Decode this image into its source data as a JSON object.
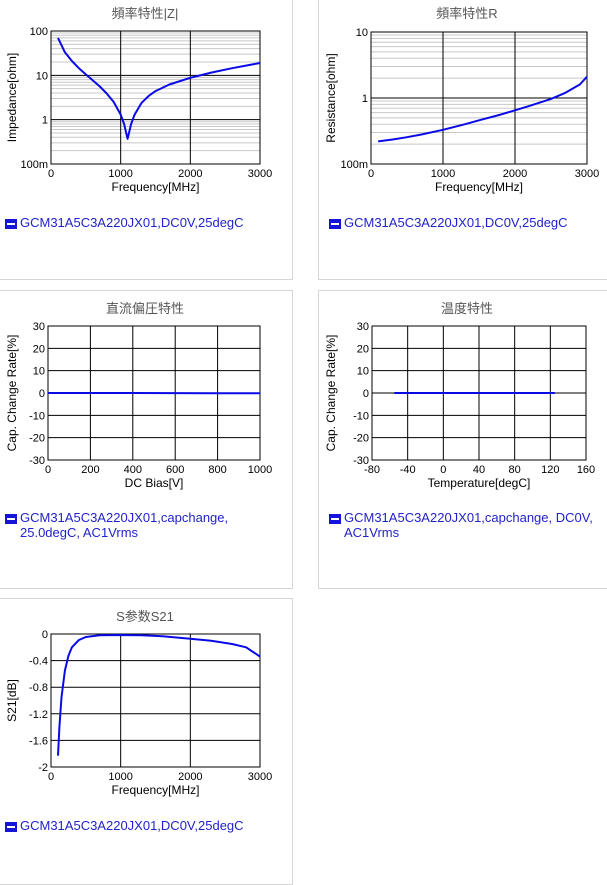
{
  "chart_data": [
    {
      "type": "line",
      "title": "頻率特性|Z|",
      "xlabel": "Frequency[MHz]",
      "ylabel": "Impedance[ohm]",
      "xlim": [
        0,
        3000
      ],
      "ylim": [
        0.1,
        100
      ],
      "ylog": true,
      "x_tick_labels": [
        "0",
        "1000",
        "2000",
        "3000"
      ],
      "y_tick_labels": [
        "100m",
        "1",
        "10",
        "100"
      ],
      "grid": true,
      "legend": "GCM31A5C3A220JX01,DC0V,25degC",
      "series": [
        {
          "name": "GCM31A5C3A220JX01,DC0V,25degC",
          "x": [
            100,
            200,
            300,
            400,
            500,
            600,
            700,
            800,
            900,
            1000,
            1050,
            1080,
            1100,
            1120,
            1150,
            1200,
            1300,
            1400,
            1500,
            1700,
            2000,
            2300,
            2600,
            3000
          ],
          "y": [
            70,
            33,
            21,
            14.5,
            10.5,
            7.7,
            5.6,
            3.9,
            2.5,
            1.3,
            0.8,
            0.5,
            0.37,
            0.5,
            0.8,
            1.3,
            2.4,
            3.4,
            4.4,
            6.2,
            8.8,
            11.5,
            14.5,
            19
          ]
        }
      ]
    },
    {
      "type": "line",
      "title": "頻率特性R",
      "xlabel": "Frequency[MHz]",
      "ylabel": "Resistance[ohm]",
      "xlim": [
        0,
        3000
      ],
      "ylim": [
        0.1,
        10
      ],
      "ylog": true,
      "x_tick_labels": [
        "0",
        "1000",
        "2000",
        "3000"
      ],
      "y_tick_labels": [
        "100m",
        "1",
        "10"
      ],
      "grid": true,
      "legend": "GCM31A5C3A220JX01,DC0V,25degC",
      "series": [
        {
          "name": "GCM31A5C3A220JX01,DC0V,25degC",
          "x": [
            100,
            300,
            500,
            700,
            1000,
            1300,
            1500,
            1800,
            2000,
            2200,
            2500,
            2700,
            2900,
            3000
          ],
          "y": [
            0.22,
            0.235,
            0.255,
            0.28,
            0.33,
            0.4,
            0.46,
            0.56,
            0.65,
            0.76,
            0.97,
            1.2,
            1.6,
            2.1
          ]
        }
      ]
    },
    {
      "type": "line",
      "title": "直流偏圧特性",
      "xlabel": "DC Bias[V]",
      "ylabel": "Cap. Change Rate[%]",
      "xlim": [
        0,
        1000
      ],
      "ylim": [
        -30,
        30
      ],
      "x_tick_labels": [
        "0",
        "200",
        "400",
        "600",
        "800",
        "1000"
      ],
      "y_tick_labels": [
        "-30",
        "-20",
        "-10",
        "0",
        "10",
        "20",
        "30"
      ],
      "grid": true,
      "legend": "GCM31A5C3A220JX01,capchange, 25.0degC, AC1Vrms",
      "series": [
        {
          "name": "GCM31A5C3A220JX01,capchange, 25.0degC, AC1Vrms",
          "x": [
            0,
            200,
            400,
            600,
            800,
            1000
          ],
          "y": [
            0,
            0,
            0,
            -0.05,
            -0.1,
            -0.15
          ]
        }
      ]
    },
    {
      "type": "line",
      "title": "温度特性",
      "xlabel": "Temperature[degC]",
      "ylabel": "Cap. Change Rate[%]",
      "xlim": [
        -80,
        160
      ],
      "ylim": [
        -30,
        30
      ],
      "x_tick_labels": [
        "-80",
        "-40",
        "0",
        "40",
        "80",
        "120",
        "160"
      ],
      "y_tick_labels": [
        "-30",
        "-20",
        "-10",
        "0",
        "10",
        "20",
        "30"
      ],
      "grid": true,
      "legend": "GCM31A5C3A220JX01,capchange, DC0V, AC1Vrms",
      "series": [
        {
          "name": "GCM31A5C3A220JX01,capchange, DC0V, AC1Vrms",
          "x": [
            -55,
            0,
            25,
            60,
            125
          ],
          "y": [
            0,
            0,
            0,
            0,
            0
          ]
        }
      ]
    },
    {
      "type": "line",
      "title": "S参数S21",
      "xlabel": "Frequency[MHz]",
      "ylabel": "S21[dB]",
      "xlim": [
        0,
        3000
      ],
      "ylim": [
        -2,
        0
      ],
      "x_tick_labels": [
        "0",
        "1000",
        "2000",
        "3000"
      ],
      "y_tick_labels": [
        "-2",
        "-1.6",
        "-1.2",
        "-0.8",
        "-0.4",
        "0"
      ],
      "grid": true,
      "legend": "GCM31A5C3A220JX01,DC0V,25degC",
      "series": [
        {
          "name": "GCM31A5C3A220JX01,DC0V,25degC",
          "x": [
            100,
            120,
            150,
            200,
            250,
            300,
            400,
            500,
            700,
            1000,
            1300,
            1600,
            2000,
            2300,
            2600,
            2800,
            3000
          ],
          "y": [
            -1.83,
            -1.4,
            -0.95,
            -0.55,
            -0.33,
            -0.2,
            -0.09,
            -0.045,
            -0.02,
            -0.015,
            -0.02,
            -0.035,
            -0.07,
            -0.1,
            -0.15,
            -0.2,
            -0.34
          ]
        }
      ]
    }
  ],
  "colors": {
    "line": "#0a0ae6",
    "grid_major": "#000000",
    "grid_minor": "#c8c8c8",
    "title": "#555555",
    "legend_text": "#2222cc"
  },
  "icons": {
    "legend_swatch": "minus-swatch-icon"
  }
}
